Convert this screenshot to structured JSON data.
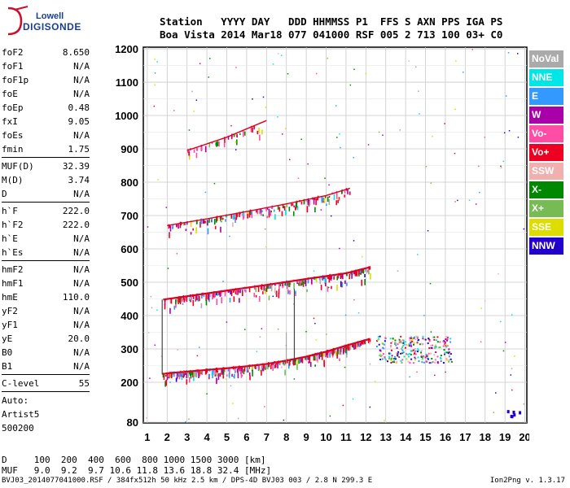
{
  "logo": {
    "line1": "Lowell",
    "line2": "DIGISONDE"
  },
  "header": {
    "labels": "Station   YYYY DAY   DDD HHMMSS P1  FFS S AXN PPS IGA PS",
    "values": "Boa Vista 2014 Mar18 077 041000 RSF 005 2 713 100 03+ C0"
  },
  "params_groups": [
    [
      [
        "foF2",
        "8.650"
      ],
      [
        "foF1",
        "N/A"
      ],
      [
        "foF1p",
        "N/A"
      ],
      [
        "foE",
        "N/A"
      ],
      [
        "foEp",
        "0.48"
      ],
      [
        "fxI",
        "9.05"
      ],
      [
        "foEs",
        "N/A"
      ],
      [
        "fmin",
        "1.75"
      ]
    ],
    [
      [
        "MUF(D)",
        "32.39"
      ],
      [
        "M(D)",
        "3.74"
      ],
      [
        "D",
        "N/A"
      ]
    ],
    [
      [
        "h`F",
        "222.0"
      ],
      [
        "h`F2",
        "222.0"
      ],
      [
        "h`E",
        "N/A"
      ],
      [
        "h`Es",
        "N/A"
      ]
    ],
    [
      [
        "hmF2",
        "N/A"
      ],
      [
        "hmF1",
        "N/A"
      ],
      [
        "hmE",
        "110.0"
      ],
      [
        "yF2",
        "N/A"
      ],
      [
        "yF1",
        "N/A"
      ],
      [
        "yE",
        "20.0"
      ],
      [
        "B0",
        "N/A"
      ],
      [
        "B1",
        "N/A"
      ]
    ],
    [
      [
        "C-level",
        "55"
      ]
    ]
  ],
  "auto_lines": [
    "Auto:",
    "Artist5",
    "500200"
  ],
  "legend": [
    {
      "label": "NoVal",
      "bg": "#aaaaaa",
      "fg": "#ffffff"
    },
    {
      "label": "NNE",
      "bg": "#00e6e6",
      "fg": "#ffffff"
    },
    {
      "label": "E",
      "bg": "#3399ff",
      "fg": "#ffffff"
    },
    {
      "label": "W",
      "bg": "#aa00aa",
      "fg": "#ffffff"
    },
    {
      "label": "Vo-",
      "bg": "#ff4da6",
      "fg": "#ffffff"
    },
    {
      "label": "Vo+",
      "bg": "#ee0022",
      "fg": "#ffffff"
    },
    {
      "label": "SSW",
      "bg": "#f0b0b0",
      "fg": "#ffffff"
    },
    {
      "label": "X-",
      "bg": "#008800",
      "fg": "#ffffff"
    },
    {
      "label": "X+",
      "bg": "#77bb55",
      "fg": "#ffffff"
    },
    {
      "label": "SSE",
      "bg": "#dddd00",
      "fg": "#ffffff"
    },
    {
      "label": "NNW",
      "bg": "#2200cc",
      "fg": "#ffffff"
    }
  ],
  "footer": {
    "line1": "D     100  200  400  600  800 1000 1500 3000 [km]",
    "line2": "MUF   9.0  9.2  9.7 10.6 11.8 13.6 18.8 32.4 [MHz]",
    "file": "BVJ03_2014077041000.RSF / 384fx512h 50 kHz 2.5 km / DPS-4D BVJ03 003 / 2.8 N 299.3 E",
    "version": "Ion2Png v. 1.3.17"
  },
  "chart_data": {
    "type": "scatter",
    "title": "",
    "xlabel": "",
    "ylabel": "",
    "xlim": [
      0.8,
      20.1
    ],
    "ylim": [
      78,
      1205
    ],
    "x_ticks": [
      1,
      2,
      3,
      4,
      5,
      6,
      7,
      8,
      9,
      10,
      11,
      12,
      13,
      14,
      15,
      16,
      17,
      18,
      19,
      20
    ],
    "y_ticks": [
      80,
      200,
      300,
      400,
      500,
      600,
      700,
      800,
      900,
      1000,
      1100,
      1200
    ],
    "grid": true,
    "legend_position": "right",
    "traces": [
      {
        "name": "o-trace F",
        "x": [
          1.75,
          2,
          3,
          4,
          5,
          6,
          7,
          8,
          9,
          10,
          11,
          12.2
        ],
        "y": [
          224,
          227,
          232,
          237,
          242,
          248,
          255,
          265,
          277,
          292,
          310,
          330
        ]
      },
      {
        "name": "2nd hop F",
        "x": [
          1.8,
          3,
          5,
          7,
          9,
          11,
          12.2
        ],
        "y": [
          448,
          458,
          475,
          492,
          510,
          527,
          545
        ]
      },
      {
        "name": "3rd hop F",
        "x": [
          2,
          4,
          6,
          8,
          10,
          11.2
        ],
        "y": [
          670,
          690,
          712,
          735,
          760,
          782
        ]
      },
      {
        "name": "4th hop F",
        "x": [
          3,
          5,
          7
        ],
        "y": [
          895,
          935,
          985
        ]
      }
    ],
    "scatter_cluster": {
      "x": [
        12.5,
        16.3
      ],
      "y": [
        260,
        340
      ]
    }
  }
}
